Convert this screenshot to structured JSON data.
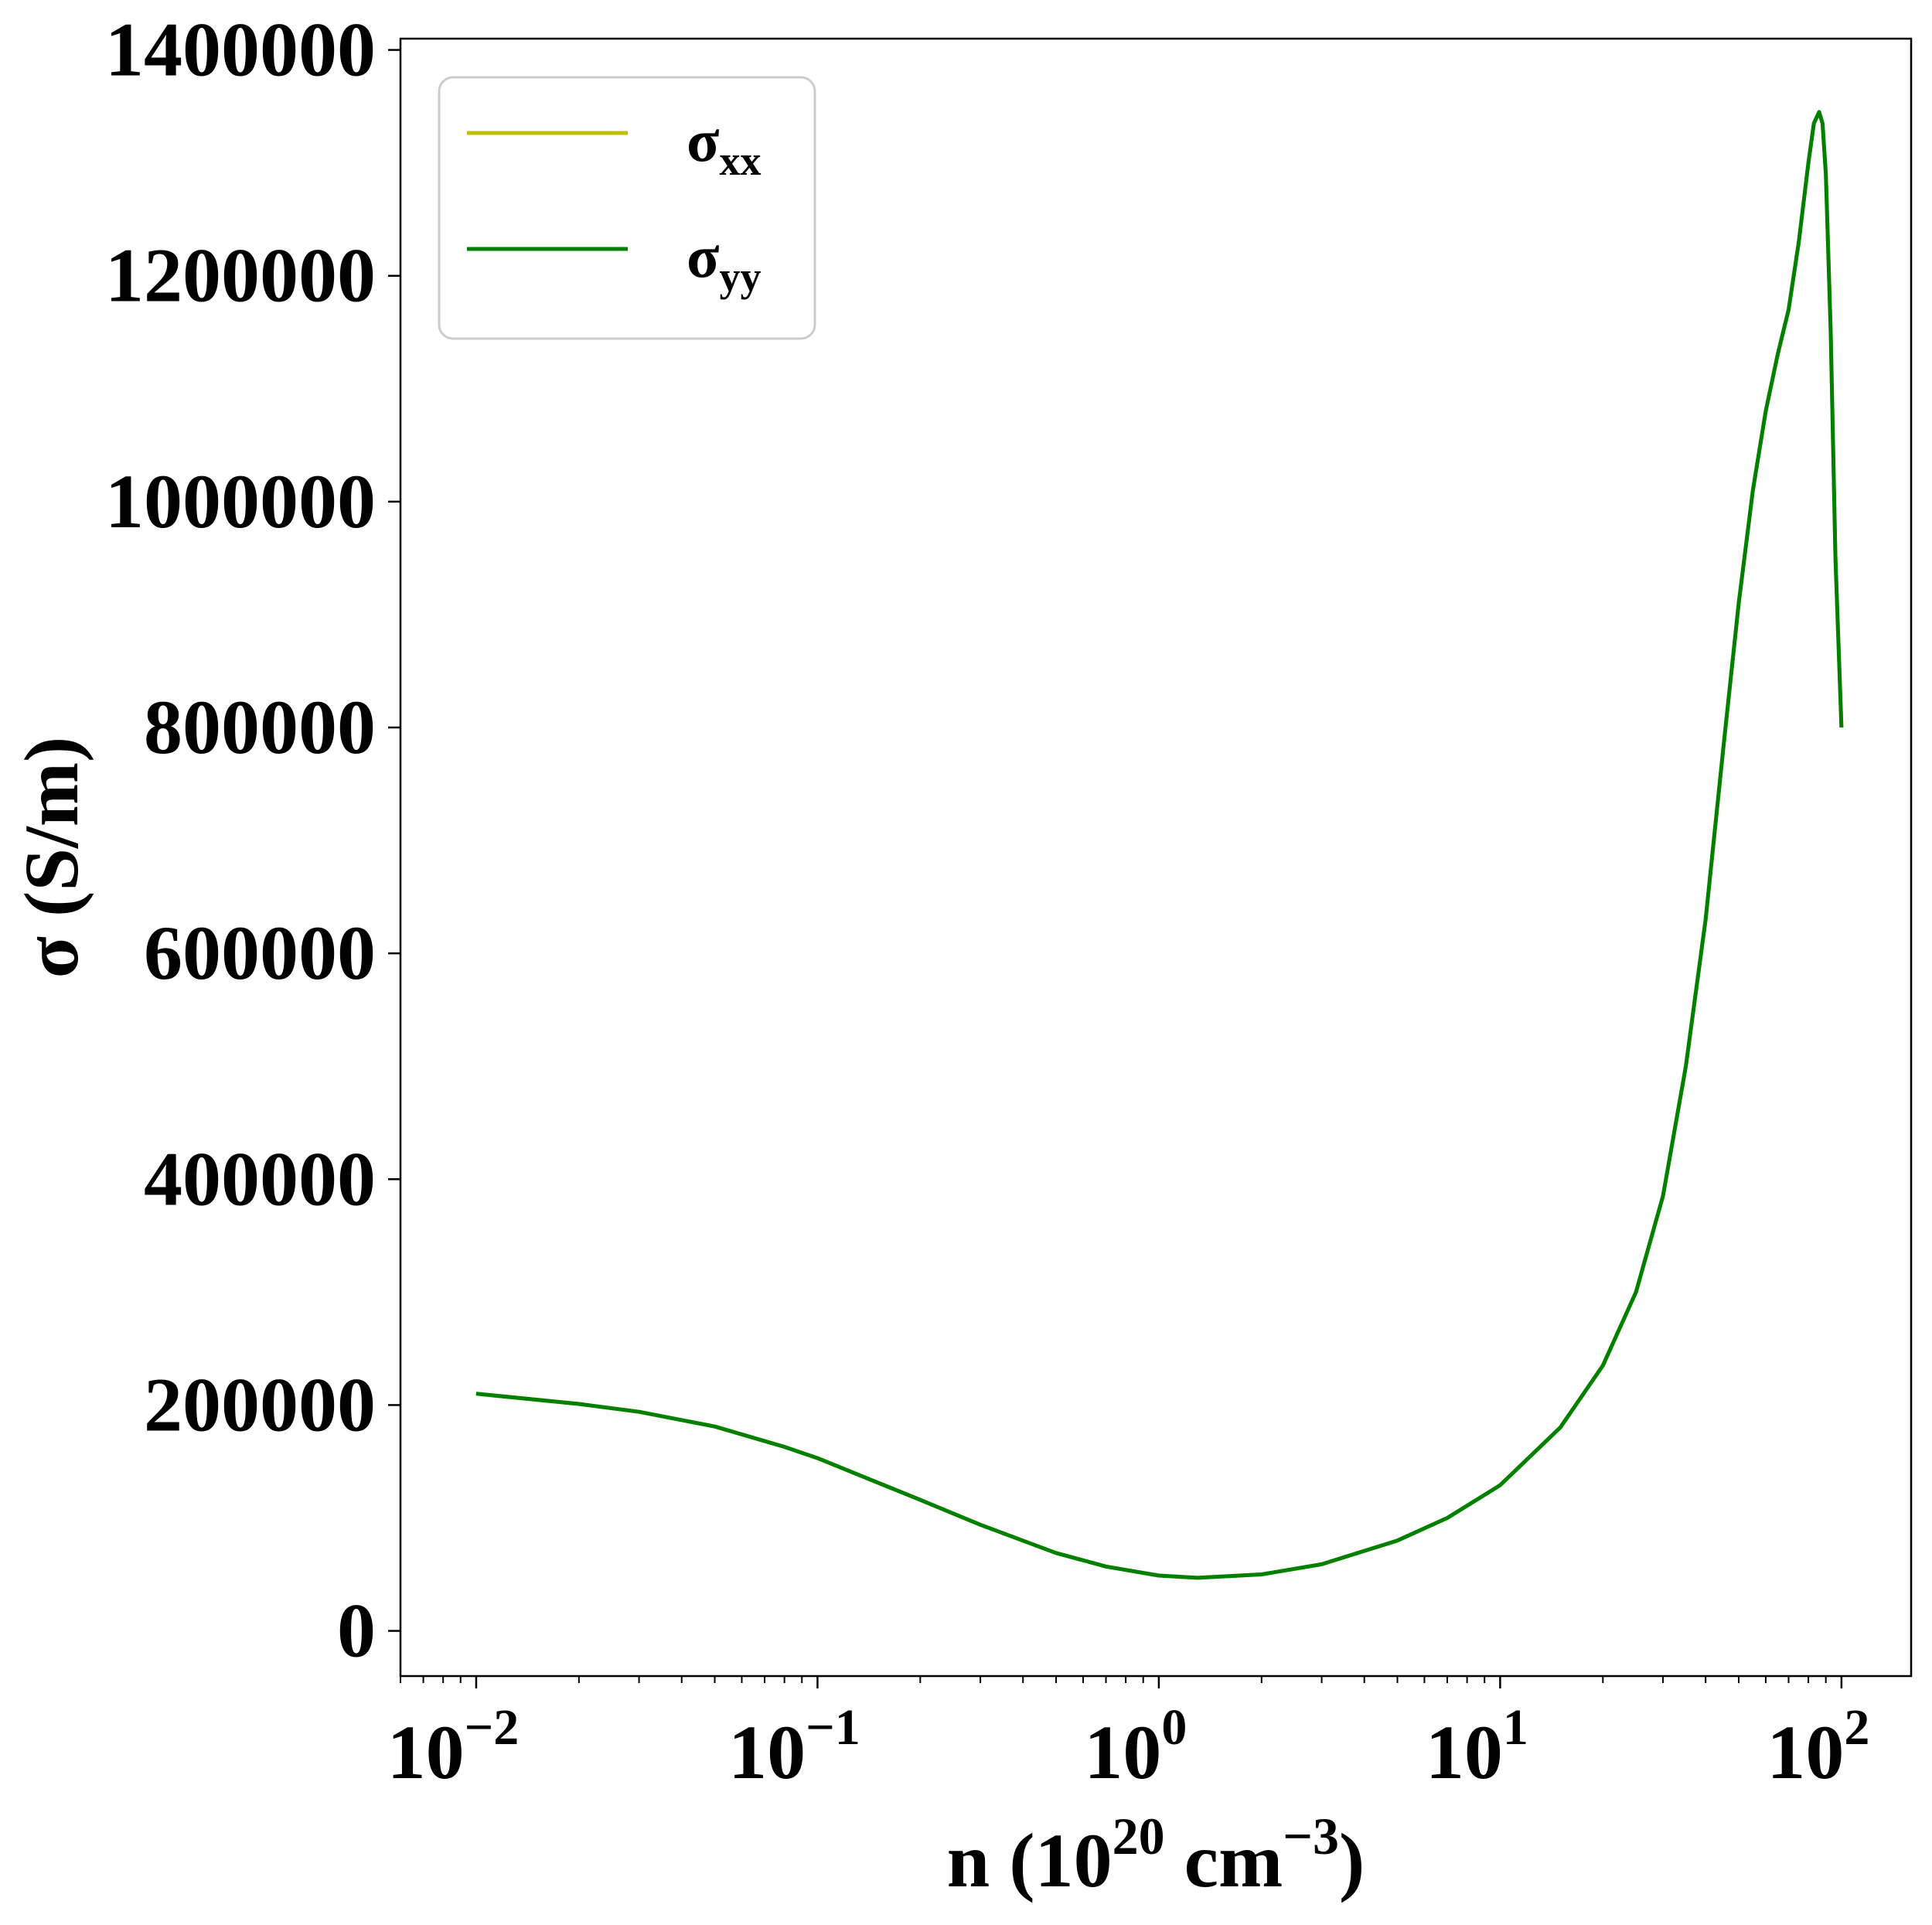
{
  "chart_data": {
    "type": "line",
    "title": "",
    "xlabel": {
      "base": "n (10",
      "exp1": "20",
      "mid": " cm",
      "exp2": "−3",
      "end": ")"
    },
    "ylabel": "σ (S/m)",
    "xscale": "log",
    "xlim": [
      0.006,
      160
    ],
    "ylim": [
      -40000,
      1410000
    ],
    "x_ticks": [
      {
        "value": 0.01,
        "base": "10",
        "exp": "−2"
      },
      {
        "value": 0.1,
        "base": "10",
        "exp": "−1"
      },
      {
        "value": 1,
        "base": "10",
        "exp": "0"
      },
      {
        "value": 10,
        "base": "10",
        "exp": "1"
      },
      {
        "value": 100,
        "base": "10",
        "exp": "2"
      }
    ],
    "y_ticks": [
      {
        "value": 0,
        "label": "0"
      },
      {
        "value": 200000,
        "label": "200000"
      },
      {
        "value": 400000,
        "label": "400000"
      },
      {
        "value": 600000,
        "label": "600000"
      },
      {
        "value": 800000,
        "label": "800000"
      },
      {
        "value": 1000000,
        "label": "1000000"
      },
      {
        "value": 1200000,
        "label": "1200000"
      },
      {
        "value": 1400000,
        "label": "1400000"
      }
    ],
    "grid": false,
    "legend_position": "top-left",
    "series": [
      {
        "name_base": "σ",
        "name_sub": "xx",
        "color": "#bfbf00",
        "x": [
          0.01,
          0.02,
          0.03,
          0.05,
          0.08,
          0.1,
          0.2,
          0.3,
          0.5,
          0.7,
          1.0,
          1.3,
          2.0,
          3.0,
          5.0,
          7.0,
          10,
          15,
          20,
          25,
          30,
          35,
          40,
          45,
          50,
          55,
          60,
          65,
          70,
          75,
          80,
          83,
          86,
          88,
          90,
          93,
          96,
          100
        ],
        "y": [
          210000,
          201000,
          194000,
          181000,
          163000,
          153000,
          116000,
          94000,
          69000,
          57000,
          49000,
          47000,
          50000,
          59000,
          80000,
          100000,
          129000,
          180000,
          235000,
          300000,
          385000,
          500000,
          630000,
          780000,
          910000,
          1010000,
          1080000,
          1130000,
          1170000,
          1230000,
          1300000,
          1335000,
          1345000,
          1335000,
          1290000,
          1150000,
          950000,
          800000
        ]
      },
      {
        "name_base": "σ",
        "name_sub": "yy",
        "color": "#008000",
        "x": [
          0.01,
          0.02,
          0.03,
          0.05,
          0.08,
          0.1,
          0.2,
          0.3,
          0.5,
          0.7,
          1.0,
          1.3,
          2.0,
          3.0,
          5.0,
          7.0,
          10,
          15,
          20,
          25,
          30,
          35,
          40,
          45,
          50,
          55,
          60,
          65,
          70,
          75,
          80,
          83,
          86,
          88,
          90,
          93,
          96,
          100
        ],
        "y": [
          210000,
          201000,
          194000,
          181000,
          163000,
          153000,
          116000,
          94000,
          69000,
          57000,
          49000,
          47000,
          50000,
          59000,
          80000,
          100000,
          129000,
          180000,
          235000,
          300000,
          385000,
          500000,
          630000,
          780000,
          910000,
          1010000,
          1080000,
          1130000,
          1170000,
          1230000,
          1300000,
          1335000,
          1345000,
          1335000,
          1290000,
          1150000,
          950000,
          800000
        ]
      }
    ]
  }
}
